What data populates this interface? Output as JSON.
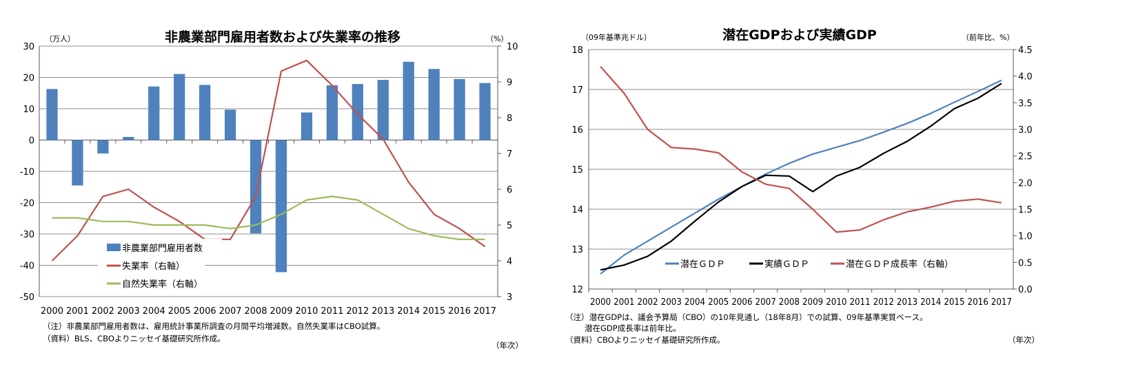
{
  "chart_data": [
    {
      "type": "bar+line",
      "title": "非農業部門雇用者数および失業率の推移",
      "y_left_unit": "（万人）",
      "y_right_unit": "（%）",
      "x_unit": "（年次）",
      "categories": [
        "2000",
        "2001",
        "2002",
        "2003",
        "2004",
        "2005",
        "2006",
        "2007",
        "2008",
        "2009",
        "2010",
        "2011",
        "2012",
        "2013",
        "2014",
        "2015",
        "2016",
        "2017"
      ],
      "ylim_left": [
        -50,
        30
      ],
      "yticks_left": [
        30,
        20,
        10,
        0,
        -10,
        -20,
        -30,
        -40,
        -50
      ],
      "ylim_right": [
        3,
        10
      ],
      "yticks_right": [
        10,
        9,
        8,
        7,
        6,
        5,
        4,
        3
      ],
      "grid": true,
      "legend_placement": "bottom-left",
      "series": [
        {
          "name": "非農業部門雇用者数",
          "type": "bar",
          "axis": "left",
          "color": "#4f81bd",
          "values": [
            16.3,
            -14.5,
            -4.3,
            1.0,
            17.1,
            21.1,
            17.6,
            9.7,
            -29.8,
            -42.2,
            8.8,
            17.5,
            17.9,
            19.2,
            25.0,
            22.7,
            19.5,
            18.2
          ]
        },
        {
          "name": "失業率（右軸）",
          "type": "line",
          "axis": "right",
          "color": "#c0504d",
          "values": [
            4.0,
            4.7,
            5.8,
            6.0,
            5.5,
            5.1,
            4.6,
            4.6,
            5.8,
            9.3,
            9.6,
            8.9,
            8.1,
            7.4,
            6.2,
            5.3,
            4.9,
            4.4
          ]
        },
        {
          "name": "自然失業率（右軸）",
          "type": "line",
          "axis": "right",
          "color": "#9bbb59",
          "values": [
            5.2,
            5.2,
            5.1,
            5.1,
            5.0,
            5.0,
            5.0,
            4.9,
            5.0,
            5.3,
            5.7,
            5.8,
            5.7,
            5.3,
            4.9,
            4.7,
            4.6,
            4.6
          ]
        }
      ]
    },
    {
      "type": "line",
      "title": "潜在GDPおよび実績GDP",
      "y_left_unit": "（09年基準兆ドル）",
      "y_right_unit": "（前年比、%）",
      "x_unit": "（年次）",
      "categories": [
        "2000",
        "2001",
        "2002",
        "2003",
        "2004",
        "2005",
        "2006",
        "2007",
        "2008",
        "2009",
        "2010",
        "2011",
        "2012",
        "2013",
        "2014",
        "2015",
        "2016",
        "2017"
      ],
      "ylim_left": [
        12,
        18
      ],
      "yticks_left": [
        18,
        17,
        16,
        15,
        14,
        13,
        12
      ],
      "ylim_right": [
        0,
        4.5
      ],
      "yticks_right": [
        "4.5",
        "4.0",
        "3.5",
        "3.0",
        "2.5",
        "2.0",
        "1.5",
        "1.0",
        "0.5",
        "0.0"
      ],
      "grid": true,
      "legend_placement": "bottom-center",
      "series": [
        {
          "name": "潜在ＧＤＰ",
          "axis": "left",
          "color": "#4f81bd",
          "values": [
            12.38,
            12.85,
            13.2,
            13.55,
            13.9,
            14.25,
            14.57,
            14.88,
            15.15,
            15.38,
            15.55,
            15.72,
            15.93,
            16.15,
            16.4,
            16.68,
            16.95,
            17.23
          ]
        },
        {
          "name": "実績ＧＤＰ",
          "axis": "left",
          "color": "#000000",
          "values": [
            12.48,
            12.6,
            12.82,
            13.2,
            13.7,
            14.18,
            14.57,
            14.85,
            14.83,
            14.44,
            14.83,
            15.05,
            15.4,
            15.7,
            16.08,
            16.52,
            16.78,
            17.15
          ]
        },
        {
          "name": "潜在ＧＤＰ成長率（右軸）",
          "axis": "right",
          "color": "#c0504d",
          "values": [
            4.18,
            3.68,
            3.0,
            2.66,
            2.63,
            2.56,
            2.2,
            1.97,
            1.89,
            1.5,
            1.07,
            1.11,
            1.3,
            1.45,
            1.54,
            1.65,
            1.69,
            1.62
          ]
        }
      ]
    }
  ],
  "notes": {
    "left_note": "（注）非農業部門雇用者数は、雇用統計事業所調査の月間平均増減数。自然失業率はCBO試算。",
    "left_source": "（資料）BLS、CBOよりニッセイ基礎研究所作成。",
    "right_note1": "（注）潜在GDPは、議会予算局（CBO）の10年見通し（18年8月）での試算、09年基準実質ベース。",
    "right_note2": "潜在GDP成長率は前年比。",
    "right_source": "（資料）CBOよりニッセイ基礎研究所作成。"
  }
}
